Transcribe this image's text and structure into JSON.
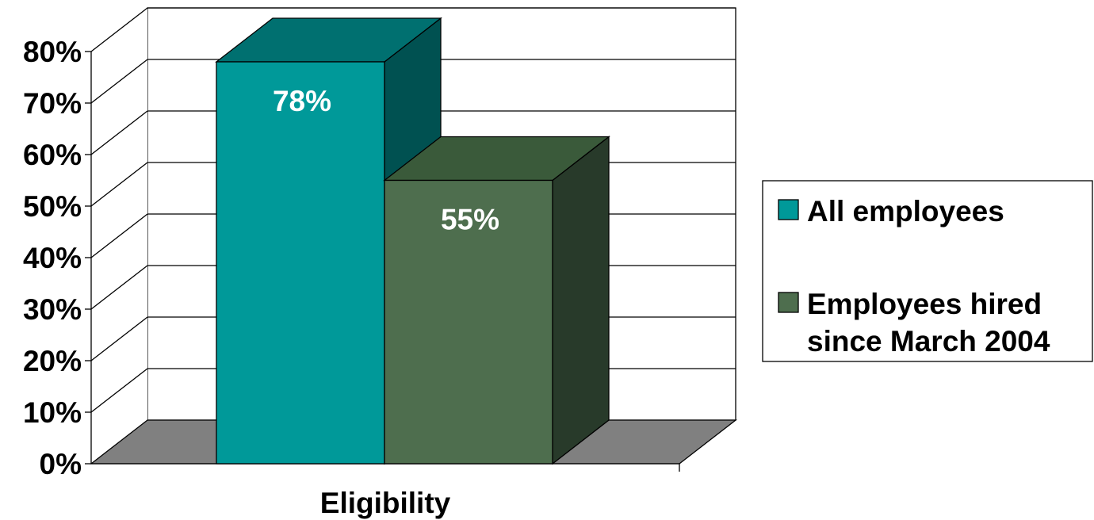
{
  "chart_data": {
    "type": "bar",
    "title": "",
    "xlabel": "Eligibility",
    "ylabel": "",
    "ylim": [
      0,
      80
    ],
    "y_ticks": [
      "0%",
      "10%",
      "20%",
      "30%",
      "40%",
      "50%",
      "60%",
      "70%",
      "80%"
    ],
    "grid": true,
    "three_d": true,
    "legend_position": "right",
    "categories": [
      "Eligibility"
    ],
    "series": [
      {
        "name": "All employees",
        "legend_lines": [
          "All employees"
        ],
        "values": [
          78
        ],
        "data_labels": [
          "78%"
        ],
        "color": "#009999",
        "top_color": "#007070",
        "side_color": "#005151"
      },
      {
        "name": "Employees hired since March 2004",
        "legend_lines": [
          "Employees hired",
          "since March 2004"
        ],
        "values": [
          55
        ],
        "data_labels": [
          "55%"
        ],
        "color": "#4e6e4e",
        "top_color": "#3a5a3a",
        "side_color": "#283a2a"
      }
    ],
    "colors": {
      "floor": "#808080",
      "gridline": "#000000",
      "background": "#ffffff"
    }
  }
}
